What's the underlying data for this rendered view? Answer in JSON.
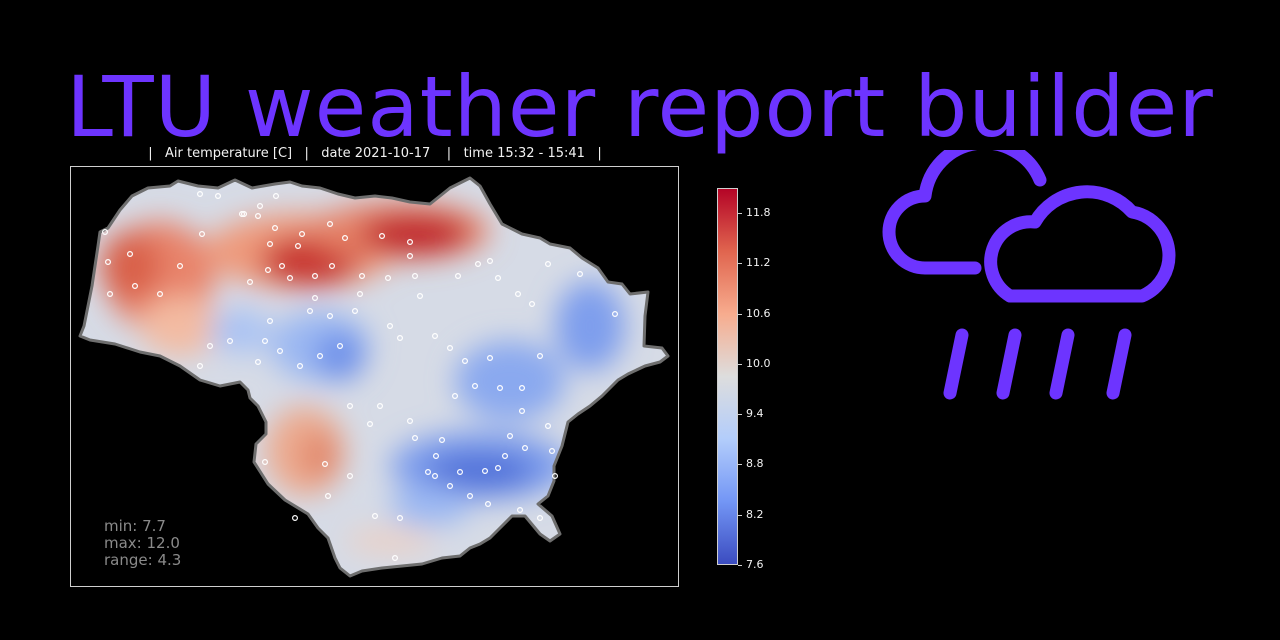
{
  "header": {
    "title": "LTU weather report builder",
    "title_color": "#6d34ff"
  },
  "map": {
    "subtitle": "|   Air temperature [C]   |   date 2021-10-17    |   time 15:32 - 15:41   |",
    "stats": {
      "min": "min: 7.7",
      "max": "max: 12.0",
      "range": "range: 4.3"
    },
    "colorbar": {
      "min": 7.6,
      "max": 12.1,
      "ticks": [
        "7.6",
        "8.2",
        "8.8",
        "9.4",
        "10.0",
        "10.6",
        "11.2",
        "11.8"
      ],
      "colors": [
        "#3b4cc0",
        "#7396f5",
        "#b3cdfb",
        "#dddddd",
        "#f7ac8e",
        "#e0654f",
        "#b40426"
      ]
    },
    "border_color": "#6e6e6e",
    "station_color": "#ffffff"
  },
  "weather_icon": {
    "name": "cloud-rain-icon",
    "color": "#6d34ff"
  }
}
